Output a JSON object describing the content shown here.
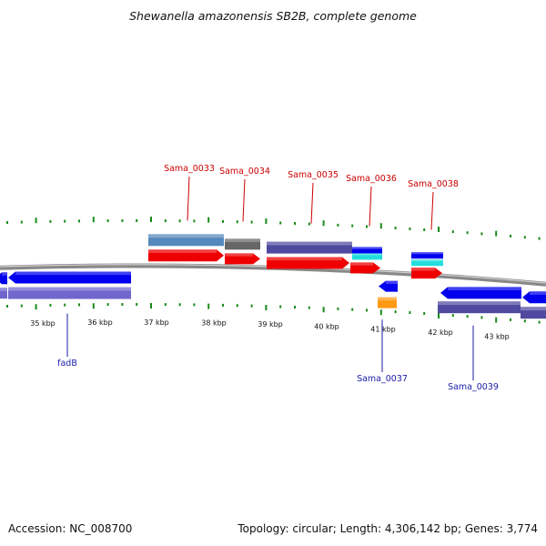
{
  "title": "Shewanella amazonensis SB2B, complete genome",
  "footer": {
    "accession": "Accession: NC_008700",
    "stats": "Topology: circular; Length: 4,306,142 bp; Genes: 3,774"
  },
  "colors": {
    "backbone": "#888888",
    "tick": "#1a8a1a",
    "label_top": "#cc0000",
    "label_bottom": "#1a1aaa",
    "cds_forward": "#ee0000",
    "cds_reverse": "#0000ee",
    "gene_steel": "#5588bb",
    "gene_gray": "#666666",
    "gene_slate": "#4f4aa0",
    "gene_cyan": "#22dddd",
    "gene_orange": "#ff9911",
    "gene_periwinkle": "#7066cc"
  },
  "kbp_labels": [
    "35 kbp",
    "36 kbp",
    "37 kbp",
    "38 kbp",
    "39 kbp",
    "40 kbp",
    "41 kbp",
    "42 kbp",
    "43 kbp"
  ],
  "gene_labels_top": [
    "Sama_0033",
    "Sama_0034",
    "Sama_0035",
    "Sama_0036",
    "Sama_0038"
  ],
  "gene_labels_bottom": [
    "fadB",
    "Sama_0037",
    "Sama_0039"
  ]
}
